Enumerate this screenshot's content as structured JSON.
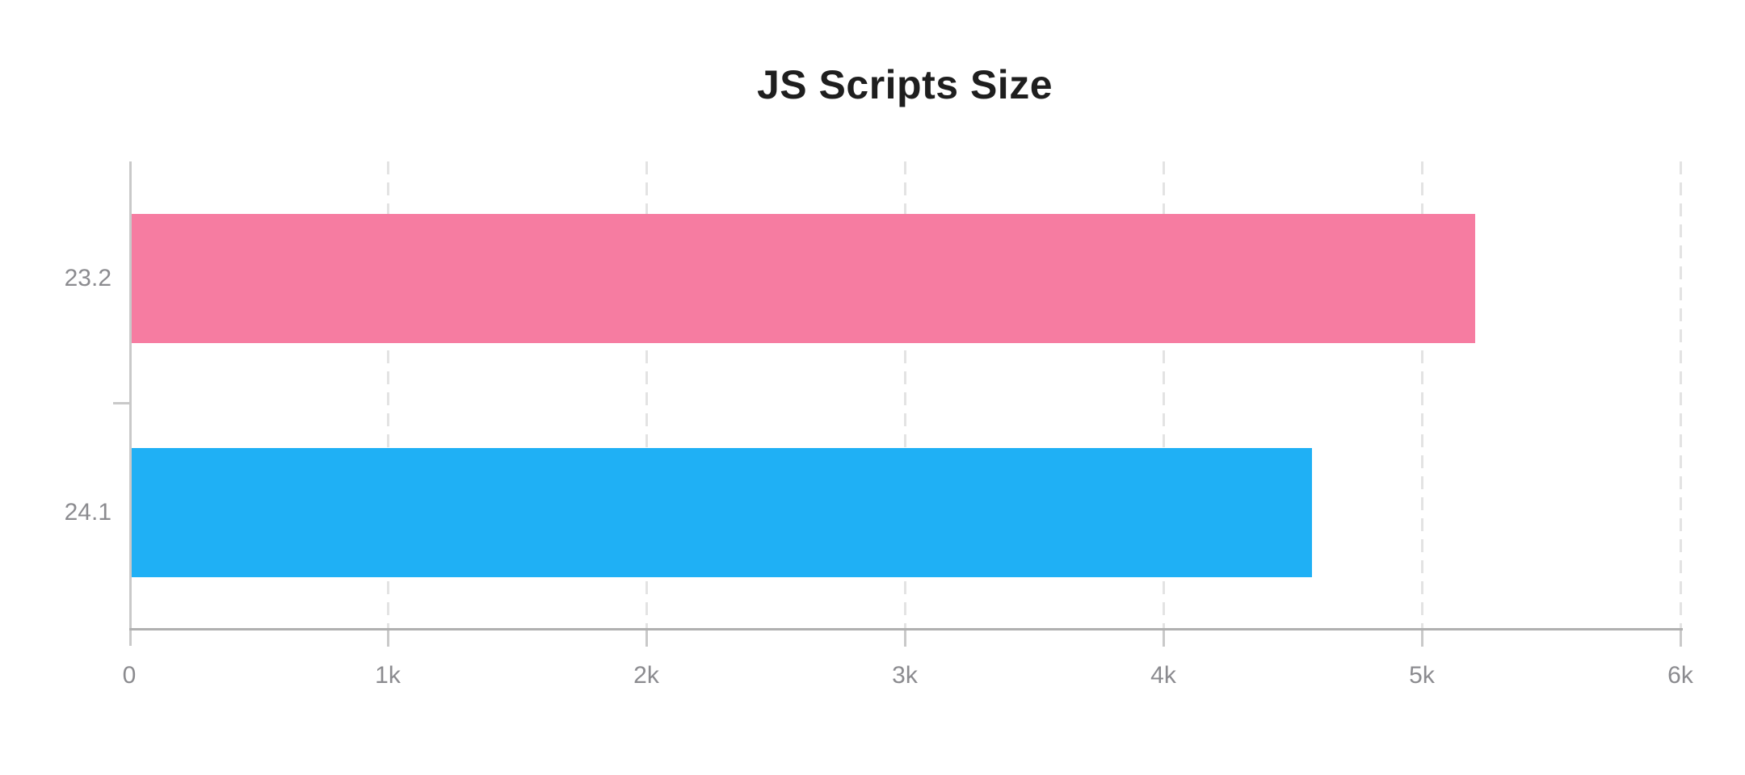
{
  "title": "JS Scripts Size",
  "chart_data": {
    "type": "bar",
    "orientation": "horizontal",
    "title": "JS Scripts Size",
    "categories": [
      "23.2",
      "24.1"
    ],
    "values": [
      5200,
      4570
    ],
    "series": [
      {
        "name": "23.2",
        "value": 5200,
        "color": "#f67ca1"
      },
      {
        "name": "24.1",
        "value": 4570,
        "color": "#1fb0f5"
      }
    ],
    "xlabel": "",
    "ylabel": "",
    "xlim": [
      0,
      6000
    ],
    "x_ticks": [
      {
        "label": "0",
        "value": 0
      },
      {
        "label": "1k",
        "value": 1000
      },
      {
        "label": "2k",
        "value": 2000
      },
      {
        "label": "3k",
        "value": 3000
      },
      {
        "label": "4k",
        "value": 4000
      },
      {
        "label": "5k",
        "value": 5000
      },
      {
        "label": "6k",
        "value": 6000
      }
    ],
    "grid": "vertical-dashed",
    "legend": "none"
  },
  "colors": {
    "bar_pink": "#f67ca1",
    "bar_blue": "#1fb0f5",
    "title_text": "#1e1e1e",
    "axis_label_text": "#8b8b8f",
    "gridline": "#e3e3e3",
    "baseline": "#b0b0b0",
    "tick_line": "#c9c9c9"
  }
}
